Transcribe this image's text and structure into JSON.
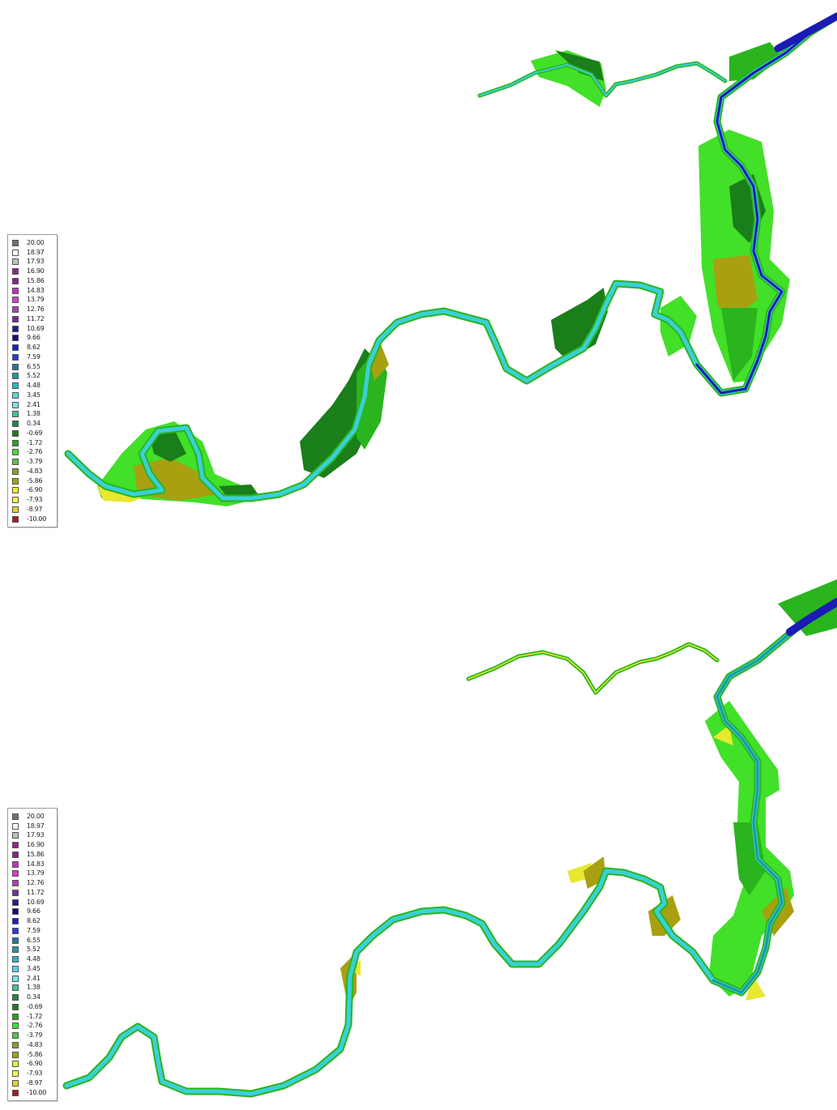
{
  "legend": {
    "entries": [
      {
        "value": "20.00",
        "color": "#707070"
      },
      {
        "value": "18.97",
        "color": "#ffffff"
      },
      {
        "value": "17.93",
        "color": "#c0c0c0"
      },
      {
        "value": "16.90",
        "color": "#9b1f8f"
      },
      {
        "value": "15.86",
        "color": "#8e1f7f"
      },
      {
        "value": "14.83",
        "color": "#c42fc0"
      },
      {
        "value": "13.79",
        "color": "#d63cd0"
      },
      {
        "value": "12.76",
        "color": "#b23dbb"
      },
      {
        "value": "11.72",
        "color": "#7a2a9a"
      },
      {
        "value": "10.69",
        "color": "#1f1a9a"
      },
      {
        "value": "9.66",
        "color": "#10107a"
      },
      {
        "value": "8.62",
        "color": "#1820c8"
      },
      {
        "value": "7.59",
        "color": "#2a3ae0"
      },
      {
        "value": "6.55",
        "color": "#1a7ca0"
      },
      {
        "value": "5.52",
        "color": "#1a9aa5"
      },
      {
        "value": "4.48",
        "color": "#2ab8c0"
      },
      {
        "value": "3.45",
        "color": "#58d8e0"
      },
      {
        "value": "2.41",
        "color": "#6ee8ee"
      },
      {
        "value": "1.38",
        "color": "#38c898"
      },
      {
        "value": "0.34",
        "color": "#1a8a3a"
      },
      {
        "value": "-0.69",
        "color": "#1a7a2a"
      },
      {
        "value": "-1.72",
        "color": "#2aa020"
      },
      {
        "value": "-2.76",
        "color": "#3ae030"
      },
      {
        "value": "-3.79",
        "color": "#50c840"
      },
      {
        "value": "-4.83",
        "color": "#8ca020"
      },
      {
        "value": "-5.86",
        "color": "#a8a010"
      },
      {
        "value": "-6.90",
        "color": "#f0f020"
      },
      {
        "value": "-7.93",
        "color": "#f8f840"
      },
      {
        "value": "-8.97",
        "color": "#e8d020"
      },
      {
        "value": "-10.00",
        "color": "#b01818"
      }
    ]
  },
  "colors": {
    "floodplain_light": "#42e028",
    "floodplain_mid": "#2ab41e",
    "floodplain_dark": "#1a7e1a",
    "olive": "#a8a010",
    "yellow": "#e8e830",
    "channel_cyan": "#3ad0d8",
    "channel_teal": "#1a9aa0",
    "channel_blue": "#1a1ab4"
  }
}
